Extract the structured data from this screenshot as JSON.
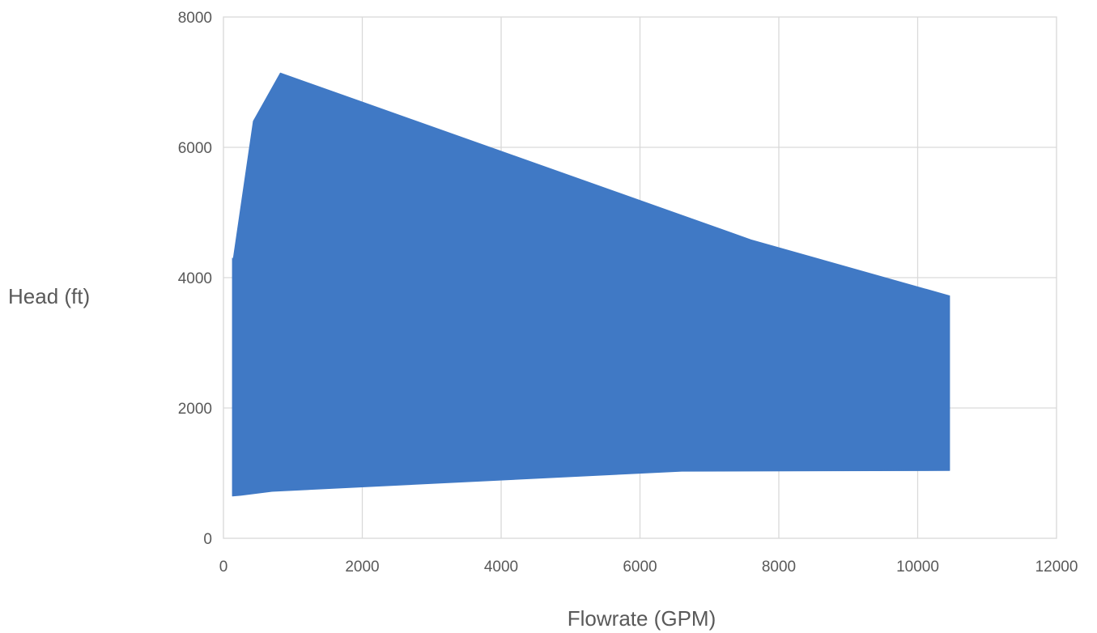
{
  "chart_data": {
    "type": "area",
    "title": "",
    "xlabel": "Flowrate (GPM)",
    "ylabel": "Head (ft)",
    "xlim": [
      0,
      12000
    ],
    "ylim": [
      0,
      8000
    ],
    "xticks": [
      0,
      2000,
      4000,
      6000,
      8000,
      10000,
      12000
    ],
    "yticks": [
      0,
      2000,
      4000,
      6000,
      8000
    ],
    "grid": true,
    "legend": "none",
    "fill_color": "#4079C5",
    "grid_color": "#D9D9D9",
    "text_color": "#595959",
    "series": [
      {
        "upper_envelope": {
          "x": [
            130,
            130,
            430,
            820,
            7600,
            10460
          ],
          "y": [
            4300,
            4200,
            6400,
            7140,
            4580,
            3720
          ]
        },
        "lower_envelope": {
          "x": [
            130,
            250,
            700,
            6600,
            10460
          ],
          "y": [
            650,
            660,
            720,
            1030,
            1040
          ]
        }
      }
    ]
  }
}
